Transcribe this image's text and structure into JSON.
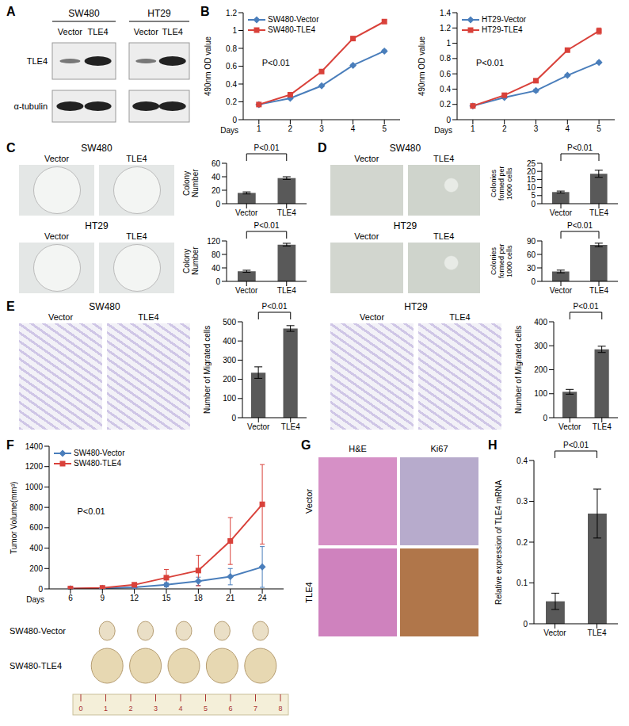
{
  "chart_data": [
    {
      "panel_label": "B",
      "type": "line",
      "x_label": "Days",
      "y_label": "490nm OD value",
      "annotation": "P<0.01",
      "x": [
        1,
        2,
        3,
        4,
        5
      ],
      "xlim": [
        0.5,
        5.5
      ],
      "xticks": [
        1,
        2,
        3,
        4,
        5
      ],
      "ylim": [
        0,
        1.2
      ],
      "yticks": [
        0,
        0.2,
        0.4,
        0.6,
        0.8,
        1,
        1.2
      ],
      "legend": "upper left",
      "series": [
        {
          "name": "SW480-Vector",
          "color": "#4a7ebb",
          "marker": "diamond",
          "values": [
            0.17,
            0.24,
            0.38,
            0.61,
            0.77
          ],
          "errors": [
            0.005,
            0.008,
            0.01,
            0.012,
            0.012
          ]
        },
        {
          "name": "SW480-TLE4",
          "color": "#d9413a",
          "marker": "square",
          "values": [
            0.17,
            0.28,
            0.54,
            0.91,
            1.1
          ],
          "errors": [
            0.005,
            0.01,
            0.01,
            0.015,
            0.02
          ]
        }
      ]
    },
    {
      "type": "line",
      "x_label": "Days",
      "y_label": "490nm OD value",
      "annotation": "P<0.01",
      "x": [
        1,
        2,
        3,
        4,
        5
      ],
      "xlim": [
        0.5,
        5.5
      ],
      "xticks": [
        1,
        2,
        3,
        4,
        5
      ],
      "ylim": [
        0,
        1.4
      ],
      "yticks": [
        0,
        0.2,
        0.4,
        0.6,
        0.8,
        1,
        1.2,
        1.4
      ],
      "legend": "upper left",
      "series": [
        {
          "name": "HT29-Vector",
          "color": "#4a7ebb",
          "marker": "diamond",
          "values": [
            0.18,
            0.29,
            0.38,
            0.58,
            0.75
          ],
          "errors": [
            0.005,
            0.01,
            0.02,
            0.015,
            0.015
          ]
        },
        {
          "name": "HT29-TLE4",
          "color": "#d9413a",
          "marker": "square",
          "values": [
            0.18,
            0.32,
            0.51,
            0.91,
            1.16
          ],
          "errors": [
            0.005,
            0.015,
            0.01,
            0.01,
            0.04
          ]
        }
      ]
    },
    {
      "panel_label": "C",
      "type": "bar",
      "image_title": "SW480",
      "image_labels": [
        "Vector",
        "TLE4"
      ],
      "y_label": "Colony Number",
      "annotation": "P<0.01",
      "categories": [
        "Vector",
        "TLE4"
      ],
      "values": [
        16,
        38
      ],
      "errors": [
        1.5,
        2
      ],
      "color": "#595959",
      "ylim": [
        0,
        60
      ],
      "yticks": [
        0,
        20,
        40,
        60
      ]
    },
    {
      "type": "bar",
      "image_title": "HT29",
      "image_labels": [
        "Vector",
        "TLE4"
      ],
      "y_label": "Colony Number",
      "annotation": "P<0.01",
      "categories": [
        "Vector",
        "TLE4"
      ],
      "values": [
        30,
        109
      ],
      "errors": [
        3,
        4
      ],
      "color": "#595959",
      "ylim": [
        0,
        120
      ],
      "yticks": [
        0,
        40,
        80,
        120
      ]
    },
    {
      "panel_label": "D",
      "type": "bar",
      "image_title": "SW480",
      "image_labels": [
        "Vector",
        "TLE4"
      ],
      "y_label": "Colonies formed per 1000 cells",
      "annotation": "P<0.01",
      "categories": [
        "Vector",
        "TLE4"
      ],
      "values": [
        7.2,
        18.5
      ],
      "errors": [
        0.6,
        2.2
      ],
      "color": "#595959",
      "ylim": [
        0,
        25
      ],
      "yticks": [
        0,
        5,
        10,
        15,
        20,
        25
      ]
    },
    {
      "type": "bar",
      "image_title": "HT29",
      "image_labels": [
        "Vector",
        "TLE4"
      ],
      "y_label": "Colonies formed per 1000 cells",
      "annotation": "P<0.01",
      "categories": [
        "Vector",
        "TLE4"
      ],
      "values": [
        22,
        81
      ],
      "errors": [
        3,
        4
      ],
      "color": "#595959",
      "ylim": [
        0,
        90
      ],
      "yticks": [
        0,
        30,
        60,
        90
      ]
    },
    {
      "panel_label": "E",
      "type": "bar",
      "image_title": "SW480",
      "image_labels": [
        "Vector",
        "TLE4"
      ],
      "y_label": "Number of Migrated cells",
      "annotation": "P<0.01",
      "categories": [
        "Vector",
        "TLE4"
      ],
      "values": [
        235,
        465
      ],
      "errors": [
        30,
        15
      ],
      "color": "#595959",
      "ylim": [
        0,
        500
      ],
      "yticks": [
        0,
        100,
        200,
        300,
        400,
        500
      ]
    },
    {
      "type": "bar",
      "image_title": "HT29",
      "image_labels": [
        "Vector",
        "TLE4"
      ],
      "y_label": "Number of Migrated cells",
      "annotation": "P<0.01",
      "categories": [
        "Vector",
        "TLE4"
      ],
      "values": [
        108,
        285
      ],
      "errors": [
        10,
        13
      ],
      "color": "#595959",
      "ylim": [
        0,
        400
      ],
      "yticks": [
        0,
        100,
        200,
        300,
        400
      ]
    },
    {
      "panel_label": "F",
      "type": "line",
      "x_label": "Days",
      "y_label": "Tumor Volume(mm³)",
      "annotation": "P<0.01",
      "x": [
        6,
        9,
        12,
        15,
        18,
        21,
        24
      ],
      "xlim": [
        4,
        26
      ],
      "xticks": [
        6,
        9,
        12,
        15,
        18,
        21,
        24
      ],
      "ylim": [
        0,
        1400
      ],
      "yticks": [
        0,
        200,
        400,
        600,
        800,
        1000,
        1200,
        1400
      ],
      "legend": "upper left",
      "series": [
        {
          "name": "SW480-Vector",
          "color": "#4a7ebb",
          "marker": "diamond",
          "values": [
            2,
            5,
            15,
            40,
            75,
            120,
            215
          ],
          "errors": [
            1,
            3,
            8,
            20,
            40,
            80,
            200
          ]
        },
        {
          "name": "SW480-TLE4",
          "color": "#d9413a",
          "marker": "square",
          "values": [
            3,
            10,
            40,
            110,
            180,
            470,
            830
          ],
          "errors": [
            2,
            5,
            20,
            80,
            150,
            230,
            390
          ]
        }
      ]
    },
    {
      "panel_label": "H",
      "type": "bar",
      "y_label": "Relative expression of TLE4 mRNA",
      "annotation": "P<0.01",
      "categories": [
        "Vector",
        "TLE4"
      ],
      "values": [
        0.055,
        0.27
      ],
      "errors": [
        0.02,
        0.06
      ],
      "color": "#595959",
      "ylim": [
        0,
        0.4
      ],
      "yticks": [
        0,
        0.1,
        0.2,
        0.3,
        0.4
      ]
    }
  ],
  "blot": {
    "panel_label": "A",
    "cell_lines": [
      "SW480",
      "HT29"
    ],
    "lanes": [
      "Vector",
      "TLE4"
    ],
    "rows": [
      "TLE4",
      "α-tubulin"
    ]
  },
  "tumor_photo": {
    "rows": [
      "SW480-Vector",
      "SW480-TLE4"
    ],
    "tumor_counts": [
      5,
      5
    ],
    "ruler_ticks": [
      0,
      1,
      2,
      3,
      4,
      5,
      6,
      7,
      8
    ]
  },
  "histology": {
    "panel_label": "G",
    "columns": [
      "H&E",
      "Ki67"
    ],
    "rows": [
      "Vector",
      "TLE4"
    ]
  }
}
